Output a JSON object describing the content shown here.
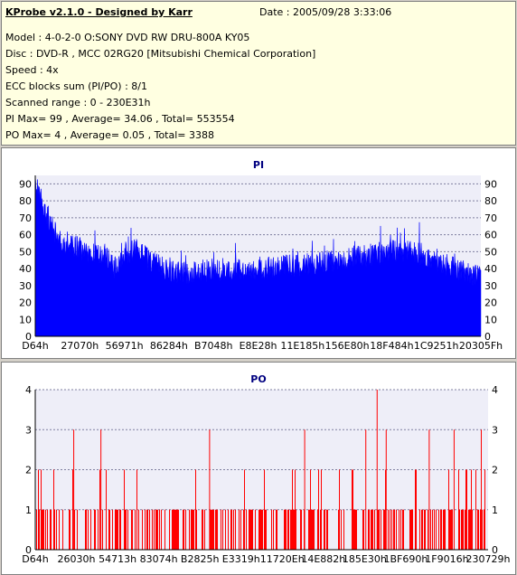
{
  "info": {
    "app_title": "KProbe v2.1.0 - Designed by Karr",
    "date": "Date : 2005/09/28 3:33:06",
    "lines": [
      "Model : 4-0-2-0 O:SONY    DVD RW DRU-800A  KY05",
      "Disc : DVD-R , MCC 02RG20  [Mitsubishi Chemical Corporation]",
      "Speed : 4x",
      "ECC blocks sum (PI/PO) : 8/1",
      "Scanned range : 0 - 230E31h",
      "PI Max= 99 , Average= 34.06 , Total= 553554",
      "PO Max= 4 , Average= 0.05 , Total= 3388"
    ]
  },
  "chart_data": [
    {
      "type": "bar",
      "title": "PI",
      "color": "#0000ff",
      "ylim": [
        0,
        95
      ],
      "yticks": [
        0,
        10,
        20,
        30,
        40,
        50,
        60,
        70,
        80,
        90
      ],
      "grid": true,
      "xticks": [
        "D64h",
        "27070h",
        "56971h",
        "86284h",
        "B7048h",
        "E8E28h",
        "11E185h",
        "156E80h",
        "18F484h",
        "1C9251h",
        "20305Fh"
      ],
      "x_range": [
        "0",
        "230E31h"
      ],
      "max": 99,
      "average": 34.06,
      "profile": [
        [
          0,
          92
        ],
        [
          0.01,
          85
        ],
        [
          0.02,
          75
        ],
        [
          0.035,
          66
        ],
        [
          0.05,
          59
        ],
        [
          0.07,
          55
        ],
        [
          0.09,
          53
        ],
        [
          0.11,
          51
        ],
        [
          0.13,
          49
        ],
        [
          0.15,
          47
        ],
        [
          0.165,
          45
        ],
        [
          0.175,
          40
        ],
        [
          0.19,
          44
        ],
        [
          0.21,
          49
        ],
        [
          0.225,
          51
        ],
        [
          0.24,
          48
        ],
        [
          0.27,
          42
        ],
        [
          0.3,
          39
        ],
        [
          0.33,
          37
        ],
        [
          0.36,
          38
        ],
        [
          0.4,
          39
        ],
        [
          0.45,
          40
        ],
        [
          0.5,
          40
        ],
        [
          0.55,
          41
        ],
        [
          0.6,
          42
        ],
        [
          0.65,
          44
        ],
        [
          0.7,
          46
        ],
        [
          0.75,
          48
        ],
        [
          0.8,
          50
        ],
        [
          0.83,
          50
        ],
        [
          0.86,
          49
        ],
        [
          0.9,
          45
        ],
        [
          0.93,
          41
        ],
        [
          0.96,
          38
        ],
        [
          1.0,
          35
        ]
      ]
    },
    {
      "type": "bar",
      "title": "PO",
      "color": "#ff0000",
      "ylim": [
        0,
        4
      ],
      "yticks": [
        0,
        1,
        2,
        3,
        4
      ],
      "grid": true,
      "xticks": [
        "D64h",
        "26030h",
        "54713h",
        "83074h",
        "B2825h",
        "E3319h",
        "11720Eh",
        "14E882h",
        "185E30h",
        "1BF690h",
        "1F9016h",
        "230729h"
      ],
      "x_range": [
        "0",
        "230E31h"
      ],
      "max": 4,
      "average": 0.05,
      "peaks": [
        {
          "position": 0.085,
          "value": 3
        },
        {
          "position": 0.145,
          "value": 3
        },
        {
          "position": 0.385,
          "value": 3
        },
        {
          "position": 0.595,
          "value": 3
        },
        {
          "position": 0.73,
          "value": 3
        },
        {
          "position": 0.755,
          "value": 4
        },
        {
          "position": 0.775,
          "value": 3
        },
        {
          "position": 0.87,
          "value": 3
        },
        {
          "position": 0.925,
          "value": 3
        },
        {
          "position": 0.985,
          "value": 3
        }
      ]
    }
  ]
}
